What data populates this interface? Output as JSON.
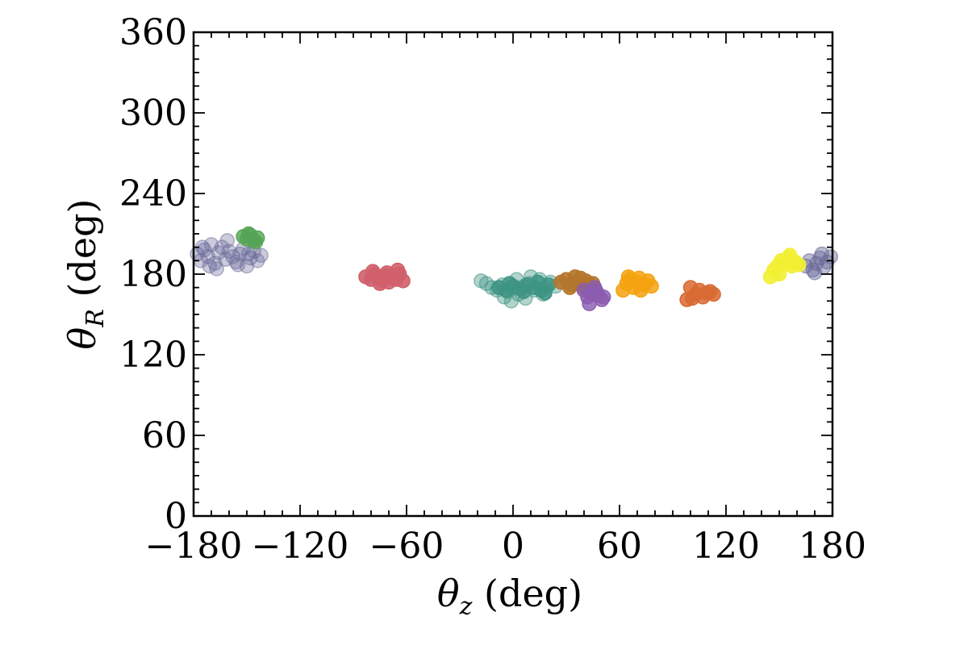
{
  "chart_data": {
    "type": "scatter",
    "title": "",
    "xlabel_parts": {
      "sym": "θ",
      "sub": "z",
      "unit": " (deg)"
    },
    "ylabel_parts": {
      "sym": "θ",
      "sub": "R",
      "unit": " (deg)"
    },
    "xlim": [
      -180,
      180
    ],
    "ylim": [
      0,
      360
    ],
    "xticks": [
      -180,
      -120,
      -60,
      0,
      60,
      120,
      180
    ],
    "yticks": [
      0,
      60,
      120,
      180,
      240,
      300,
      360
    ],
    "xtick_labels": [
      "−180",
      "−120",
      "−60",
      "0",
      "60",
      "120",
      "180"
    ],
    "ytick_labels": [
      "0",
      "60",
      "120",
      "180",
      "240",
      "300",
      "360"
    ],
    "grid": false,
    "legend": "none",
    "series": [
      {
        "color": "#6b6b9a",
        "opacity": 0.35,
        "points": [
          [
            -178,
            195
          ],
          [
            -176,
            190
          ],
          [
            -174,
            198
          ],
          [
            -172,
            193
          ],
          [
            -170,
            202
          ],
          [
            -168,
            188
          ],
          [
            -166,
            196
          ],
          [
            -164,
            200
          ],
          [
            -162,
            191
          ],
          [
            -160,
            197
          ],
          [
            -158,
            193
          ],
          [
            -156,
            189
          ],
          [
            -154,
            195
          ],
          [
            -152,
            199
          ],
          [
            -150,
            186
          ],
          [
            -148,
            192
          ],
          [
            -146,
            197
          ],
          [
            -144,
            190
          ],
          [
            -142,
            194
          ],
          [
            -175,
            200
          ],
          [
            -167,
            184
          ],
          [
            -161,
            205
          ],
          [
            -155,
            187
          ],
          [
            -149,
            195
          ],
          [
            -171,
            186
          ]
        ]
      },
      {
        "color": "#6b6b9a",
        "opacity": 0.45,
        "points": [
          [
            165,
            186
          ],
          [
            167,
            190
          ],
          [
            169,
            183
          ],
          [
            171,
            188
          ],
          [
            173,
            192
          ],
          [
            175,
            185
          ],
          [
            177,
            189
          ],
          [
            179,
            193
          ],
          [
            170,
            181
          ],
          [
            174,
            195
          ]
        ]
      },
      {
        "color": "#55a455",
        "opacity": 0.8,
        "points": [
          [
            -152,
            208
          ],
          [
            -150,
            206
          ],
          [
            -148,
            209
          ],
          [
            -146,
            205
          ],
          [
            -144,
            207
          ],
          [
            -149,
            210
          ],
          [
            -145,
            204
          ]
        ]
      },
      {
        "color": "#d0616b",
        "opacity": 0.9,
        "points": [
          [
            -83,
            178
          ],
          [
            -80,
            176
          ],
          [
            -78,
            180
          ],
          [
            -76,
            177
          ],
          [
            -74,
            175
          ],
          [
            -72,
            179
          ],
          [
            -70,
            174
          ],
          [
            -68,
            177
          ],
          [
            -66,
            176
          ],
          [
            -64,
            180
          ],
          [
            -62,
            175
          ],
          [
            -65,
            183
          ],
          [
            -71,
            181
          ],
          [
            -75,
            173
          ],
          [
            -79,
            182
          ]
        ]
      },
      {
        "color": "#3e9482",
        "opacity": 0.4,
        "points": [
          [
            -18,
            175
          ],
          [
            -15,
            173
          ],
          [
            -12,
            170
          ],
          [
            -9,
            168
          ],
          [
            -6,
            172
          ],
          [
            -3,
            167
          ],
          [
            0,
            170
          ],
          [
            3,
            165
          ],
          [
            6,
            171
          ],
          [
            9,
            173
          ],
          [
            12,
            168
          ],
          [
            15,
            176
          ],
          [
            18,
            170
          ],
          [
            21,
            174
          ],
          [
            24,
            171
          ],
          [
            -5,
            163
          ],
          [
            2,
            176
          ],
          [
            10,
            178
          ],
          [
            17,
            165
          ],
          [
            -1,
            160
          ],
          [
            7,
            162
          ]
        ]
      },
      {
        "color": "#3e9482",
        "opacity": 0.85,
        "points": [
          [
            -8,
            170
          ],
          [
            -4,
            168
          ],
          [
            0,
            171
          ],
          [
            4,
            169
          ],
          [
            8,
            172
          ],
          [
            12,
            170
          ],
          [
            16,
            168
          ],
          [
            20,
            172
          ],
          [
            -2,
            173
          ],
          [
            6,
            167
          ],
          [
            14,
            174
          ],
          [
            18,
            166
          ]
        ]
      },
      {
        "color": "#b4762c",
        "opacity": 0.9,
        "points": [
          [
            27,
            174
          ],
          [
            30,
            176
          ],
          [
            33,
            172
          ],
          [
            35,
            178
          ],
          [
            37,
            174
          ],
          [
            39,
            171
          ],
          [
            41,
            175
          ],
          [
            43,
            172
          ],
          [
            45,
            173
          ],
          [
            32,
            170
          ],
          [
            38,
            177
          ]
        ]
      },
      {
        "color": "#8b5bb0",
        "opacity": 0.8,
        "points": [
          [
            40,
            168
          ],
          [
            42,
            163
          ],
          [
            44,
            166
          ],
          [
            46,
            170
          ],
          [
            48,
            164
          ],
          [
            50,
            161
          ],
          [
            43,
            158
          ],
          [
            47,
            167
          ],
          [
            51,
            163
          ]
        ]
      },
      {
        "color": "#f5a20f",
        "opacity": 0.85,
        "points": [
          [
            62,
            168
          ],
          [
            64,
            173
          ],
          [
            66,
            176
          ],
          [
            68,
            170
          ],
          [
            70,
            174
          ],
          [
            72,
            168
          ],
          [
            74,
            172
          ],
          [
            76,
            175
          ],
          [
            78,
            171
          ],
          [
            65,
            178
          ],
          [
            71,
            177
          ]
        ]
      },
      {
        "color": "#d86a33",
        "opacity": 0.85,
        "points": [
          [
            98,
            161
          ],
          [
            100,
            170
          ],
          [
            103,
            165
          ],
          [
            105,
            168
          ],
          [
            107,
            163
          ],
          [
            109,
            166
          ],
          [
            111,
            167
          ],
          [
            113,
            165
          ],
          [
            101,
            162
          ]
        ]
      },
      {
        "color": "#f2f032",
        "opacity": 0.9,
        "points": [
          [
            145,
            178
          ],
          [
            147,
            183
          ],
          [
            149,
            186
          ],
          [
            151,
            190
          ],
          [
            153,
            188
          ],
          [
            155,
            192
          ],
          [
            157,
            186
          ],
          [
            159,
            189
          ],
          [
            161,
            187
          ],
          [
            150,
            180
          ],
          [
            156,
            194
          ]
        ]
      }
    ]
  }
}
